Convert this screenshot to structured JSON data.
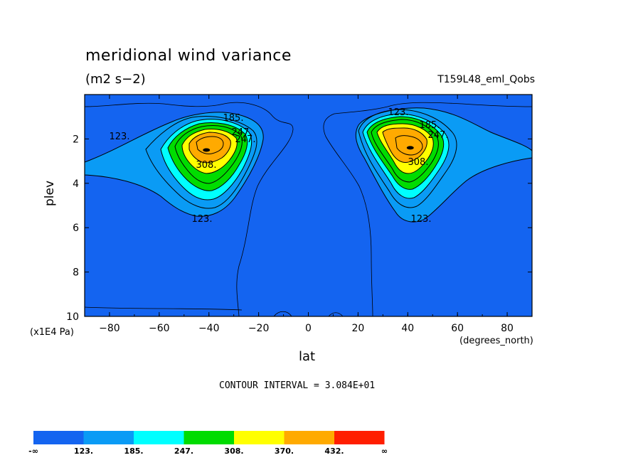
{
  "chart_data": {
    "type": "heatmap",
    "title": "meridional wind variance",
    "units": "(m2 s−2)",
    "dataset_label": "T159L48_eml_Qobs",
    "xlabel": "lat",
    "x_units": "(degrees_north)",
    "ylabel": "plev",
    "y_units": "(x1E4 Pa)",
    "xlim": [
      -90,
      90
    ],
    "ylim": [
      10,
      0
    ],
    "x_ticks": [
      -80,
      -60,
      -40,
      -20,
      0,
      20,
      40,
      60,
      80
    ],
    "y_ticks": [
      2,
      4,
      6,
      8,
      10
    ],
    "contour_note": "CONTOUR INTERVAL = 3.084E+01",
    "contour_labels": [
      "123.",
      "185.",
      "247.",
      "308.",
      "123.",
      "185.",
      "247.",
      "308.",
      "123.",
      "123."
    ],
    "colorbar": {
      "colors": [
        "#1464f0",
        "#0a9bf5",
        "#00ffff",
        "#00dc00",
        "#ffff00",
        "#ffaa00",
        "#ff1e00"
      ],
      "labels": [
        "-∞",
        "123.",
        "185.",
        "247.",
        "308.",
        "370.",
        "432.",
        "∞"
      ]
    },
    "peaks": [
      {
        "lat": -41,
        "plev": 2.5,
        "value": 432
      },
      {
        "lat": 41,
        "plev": 2.4,
        "value": 432
      }
    ]
  }
}
